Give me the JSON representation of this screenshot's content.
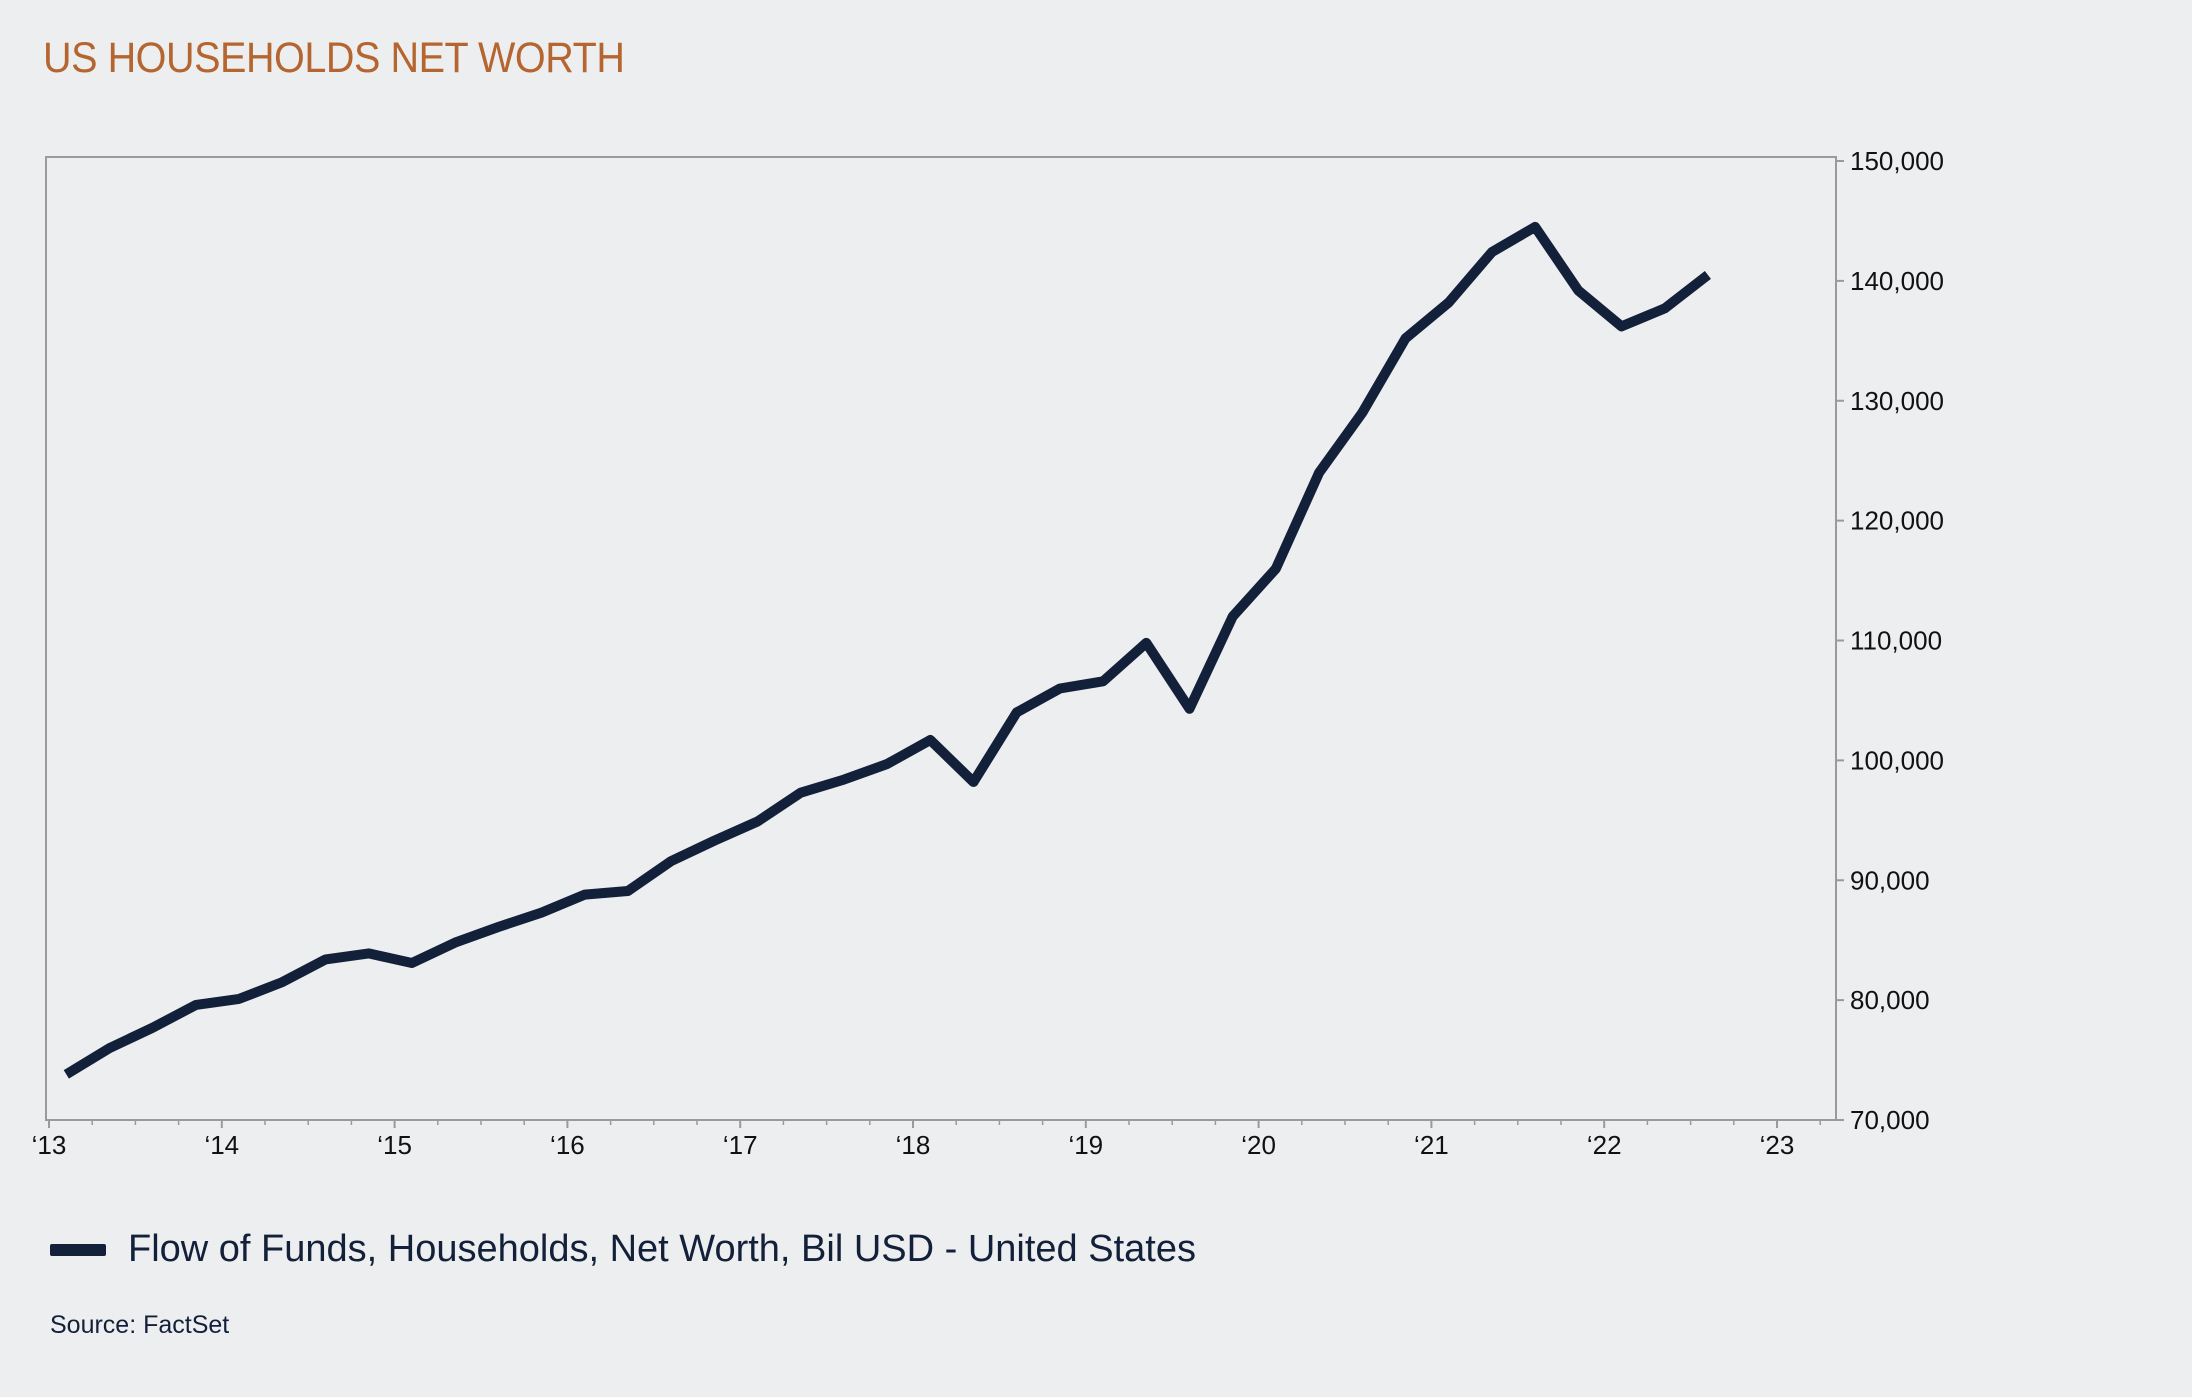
{
  "title": "US HOUSEHOLDS NET WORTH",
  "source": "Source: FactSet",
  "colors": {
    "title": "#b5652f",
    "line": "#13203a",
    "background": "#edeef0",
    "axis": "#9a9a9a"
  },
  "chart_data": {
    "type": "line",
    "title": "US HOUSEHOLDS NET WORTH",
    "xlabel": "",
    "ylabel": "",
    "xlim": [
      2013,
      2023.35
    ],
    "ylim": [
      70000,
      150000
    ],
    "x_ticks": [
      2013,
      2014,
      2015,
      2016,
      2017,
      2018,
      2019,
      2020,
      2021,
      2022,
      2023
    ],
    "x_tick_labels": [
      "‘13",
      "‘14",
      "‘15",
      "‘16",
      "‘17",
      "‘18",
      "‘19",
      "‘20",
      "‘21",
      "‘22",
      "‘23"
    ],
    "y_ticks": [
      70000,
      80000,
      90000,
      100000,
      110000,
      120000,
      130000,
      140000,
      150000
    ],
    "y_tick_labels": [
      "70,000",
      "80,000",
      "90,000",
      "100,000",
      "110,000",
      "120,000",
      "130,000",
      "140,000",
      "150,000"
    ],
    "y_axis_side": "right",
    "grid": false,
    "legend_position": "bottom-left",
    "series": [
      {
        "name": "Flow of Funds, Households, Net Worth, Bil USD - United States",
        "color": "#13203a",
        "x": [
          2013.1,
          2013.35,
          2013.6,
          2013.85,
          2014.1,
          2014.35,
          2014.6,
          2014.85,
          2015.1,
          2015.35,
          2015.6,
          2015.85,
          2016.1,
          2016.35,
          2016.6,
          2016.85,
          2017.1,
          2017.35,
          2017.6,
          2017.85,
          2018.1,
          2018.35,
          2018.6,
          2018.85,
          2019.1,
          2019.35,
          2019.6,
          2019.85,
          2020.1,
          2020.35,
          2020.6,
          2020.85,
          2021.1,
          2021.35,
          2021.6,
          2021.85,
          2022.1,
          2022.35,
          2022.6
        ],
        "values": [
          73800,
          76000,
          77700,
          79600,
          80100,
          81500,
          83400,
          83900,
          83100,
          84800,
          86100,
          87300,
          88800,
          89100,
          91600,
          93300,
          94900,
          97300,
          98400,
          99700,
          101700,
          98200,
          104000,
          106000,
          106600,
          109800,
          104300,
          112000,
          116000,
          124000,
          129000,
          135200,
          138200,
          142400,
          144500,
          139200,
          136200,
          137700,
          140500
        ]
      }
    ]
  }
}
